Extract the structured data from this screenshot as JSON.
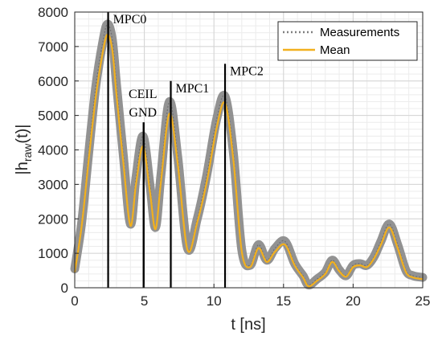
{
  "chart_data": {
    "type": "line",
    "xlabel": "t [ns]",
    "ylabel_main": "|h",
    "ylabel_sub": "raw",
    "ylabel_tail": "(t)|",
    "xlim": [
      0,
      25
    ],
    "ylim": [
      0,
      8000
    ],
    "x_ticks": [
      0,
      5,
      10,
      15,
      20,
      25
    ],
    "y_ticks": [
      0,
      1000,
      2000,
      3000,
      4000,
      5000,
      6000,
      7000,
      8000
    ],
    "grid": true,
    "minor_grid": true,
    "legend_position": "top-right",
    "series": [
      {
        "name": "Measurements",
        "color": "#7f7f7f",
        "style": "dotted band",
        "x": [
          0,
          0.5,
          1,
          1.5,
          2,
          2.35,
          2.7,
          3,
          3.5,
          4,
          4.4,
          4.9,
          5.4,
          5.8,
          6.2,
          6.8,
          7.4,
          8.1,
          8.8,
          9.5,
          10.2,
          10.8,
          11.4,
          12,
          12.6,
          13.2,
          13.8,
          14.4,
          15.1,
          15.8,
          16.4,
          16.8,
          17.4,
          18,
          18.5,
          19,
          19.5,
          20,
          20.5,
          21,
          21.5,
          22,
          22.6,
          23.2,
          23.8,
          24.3,
          25
        ],
        "values": [
          550,
          1900,
          3900,
          5800,
          7100,
          7650,
          7200,
          5900,
          3800,
          1850,
          3200,
          4400,
          3000,
          1750,
          3300,
          5400,
          3800,
          1150,
          2000,
          3300,
          4900,
          5550,
          3900,
          1100,
          650,
          1250,
          800,
          1150,
          1350,
          700,
          350,
          80,
          250,
          450,
          800,
          520,
          350,
          650,
          700,
          650,
          900,
          1350,
          1850,
          1250,
          500,
          350,
          300
        ]
      },
      {
        "name": "Mean",
        "color": "#f2b01e",
        "style": "solid",
        "x": [
          0,
          0.5,
          1,
          1.5,
          2,
          2.35,
          2.7,
          3,
          3.5,
          4,
          4.4,
          4.9,
          5.4,
          5.8,
          6.2,
          6.8,
          7.4,
          8.1,
          8.8,
          9.5,
          10.2,
          10.8,
          11.4,
          12,
          12.6,
          13.2,
          13.8,
          14.4,
          15.1,
          15.8,
          16.4,
          16.8,
          17.4,
          18,
          18.5,
          19,
          19.5,
          20,
          20.5,
          21,
          21.5,
          22,
          22.6,
          23.2,
          23.8,
          24.3,
          25
        ],
        "values": [
          450,
          1800,
          3700,
          5500,
          6800,
          7350,
          6900,
          5600,
          3600,
          1800,
          3000,
          4100,
          2800,
          1700,
          3100,
          5050,
          3600,
          1100,
          1900,
          3100,
          4650,
          5350,
          3700,
          1050,
          600,
          1150,
          750,
          1050,
          1250,
          650,
          300,
          40,
          200,
          400,
          750,
          480,
          320,
          600,
          650,
          600,
          850,
          1250,
          1750,
          1150,
          450,
          300,
          250
        ]
      }
    ],
    "markers": [
      {
        "label": "MPC0",
        "x": 2.4,
        "y_top": 8000
      },
      {
        "label": "CEIL",
        "x": 4.95,
        "y_top": 4800
      },
      {
        "label": "GND",
        "x": 4.95,
        "y_top": 4800
      },
      {
        "label": "MPC1",
        "x": 6.9,
        "y_top": 6000
      },
      {
        "label": "MPC2",
        "x": 10.8,
        "y_top": 6500
      }
    ]
  }
}
